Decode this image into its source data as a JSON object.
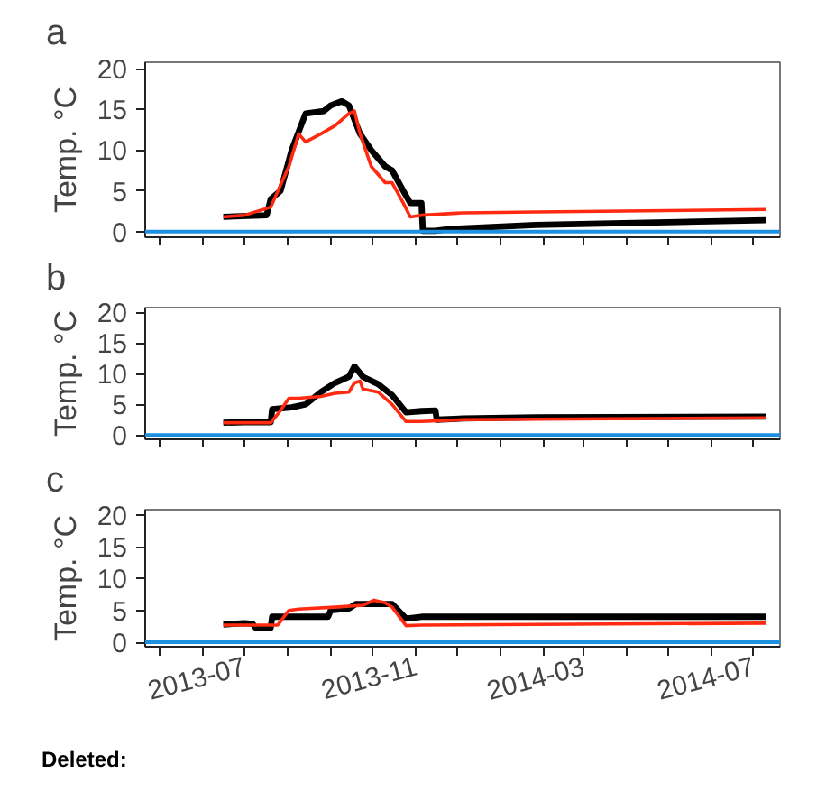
{
  "chart_data": [
    {
      "type": "line",
      "title": "a",
      "ylabel": "Temp. °C",
      "xlim": [
        "2013-04-21",
        "2014-07-20"
      ],
      "ylim": [
        -0.7,
        20.8
      ],
      "yticks": [
        0,
        5,
        10,
        15,
        20
      ],
      "xticks": [
        {
          "value": "2013-05-01",
          "label": null
        },
        {
          "value": "2013-06-01",
          "label": null
        },
        {
          "value": "2013-07-01",
          "label": null
        },
        {
          "value": "2013-08-01",
          "label": null
        },
        {
          "value": "2013-09-01",
          "label": null
        },
        {
          "value": "2013-10-01",
          "label": null
        },
        {
          "value": "2013-11-01",
          "label": null
        },
        {
          "value": "2013-12-01",
          "label": null
        },
        {
          "value": "2014-01-01",
          "label": null
        },
        {
          "value": "2014-02-01",
          "label": null
        },
        {
          "value": "2014-03-01",
          "label": null
        },
        {
          "value": "2014-04-01",
          "label": null
        },
        {
          "value": "2014-05-01",
          "label": null
        },
        {
          "value": "2014-06-01",
          "label": null
        },
        {
          "value": "2014-07-01",
          "label": null
        }
      ],
      "tick_labels": "y",
      "grid": false,
      "ref_lines": [
        {
          "axis": "y",
          "value": 0,
          "color": "#1e90e0"
        }
      ],
      "series": [
        {
          "color": "#000000",
          "x": [
            "2013-06-16",
            "2013-07-17",
            "2013-07-20",
            "2013-07-27",
            "2013-08-04",
            "2013-08-14",
            "2013-08-27",
            "2013-09-01",
            "2013-09-09",
            "2013-09-14",
            "2013-09-22",
            "2013-09-30",
            "2013-10-10",
            "2013-10-15",
            "2013-10-23",
            "2013-10-28",
            "2013-11-05",
            "2013-11-06",
            "2013-11-15",
            "2013-11-25",
            "2013-12-05",
            "2014-01-26",
            "2014-07-10"
          ],
          "values": [
            1.8,
            2,
            4,
            5,
            10,
            14.5,
            14.8,
            15.5,
            16,
            15.5,
            12,
            10,
            8,
            7.5,
            5,
            3.5,
            3.5,
            0.1,
            0.1,
            0.3,
            0.4,
            0.8,
            1.4
          ]
        },
        {
          "color": "#ff2a10",
          "x": [
            "2013-06-16",
            "2013-07-01",
            "2013-07-20",
            "2013-08-02",
            "2013-08-09",
            "2013-08-14",
            "2013-08-25",
            "2013-09-04",
            "2013-09-14",
            "2013-09-18",
            "2013-09-22",
            "2013-09-30",
            "2013-10-10",
            "2013-10-15",
            "2013-10-23",
            "2013-10-28",
            "2013-11-05",
            "2013-12-05",
            "2014-01-26",
            "2014-07-10"
          ],
          "values": [
            1.8,
            2,
            3,
            8,
            12,
            11,
            12,
            13,
            14.5,
            14.8,
            12,
            8,
            6,
            6,
            3.5,
            1.8,
            2,
            2.3,
            2.4,
            2.7
          ]
        }
      ]
    },
    {
      "type": "line",
      "title": "b",
      "ylabel": "Temp. °C",
      "xlim": [
        "2013-04-21",
        "2014-07-20"
      ],
      "ylim": [
        -0.7,
        20.8
      ],
      "yticks": [
        0,
        5,
        10,
        15,
        20
      ],
      "xticks": [
        {
          "value": "2013-05-01",
          "label": null
        },
        {
          "value": "2013-06-01",
          "label": null
        },
        {
          "value": "2013-07-01",
          "label": null
        },
        {
          "value": "2013-08-01",
          "label": null
        },
        {
          "value": "2013-09-01",
          "label": null
        },
        {
          "value": "2013-10-01",
          "label": null
        },
        {
          "value": "2013-11-01",
          "label": null
        },
        {
          "value": "2013-12-01",
          "label": null
        },
        {
          "value": "2014-01-01",
          "label": null
        },
        {
          "value": "2014-02-01",
          "label": null
        },
        {
          "value": "2014-03-01",
          "label": null
        },
        {
          "value": "2014-04-01",
          "label": null
        },
        {
          "value": "2014-05-01",
          "label": null
        },
        {
          "value": "2014-06-01",
          "label": null
        },
        {
          "value": "2014-07-01",
          "label": null
        }
      ],
      "tick_labels": "y",
      "grid": false,
      "ref_lines": [
        {
          "axis": "y",
          "value": 0,
          "color": "#1e90e0"
        }
      ],
      "series": [
        {
          "color": "#000000",
          "x": [
            "2013-06-16",
            "2013-07-01",
            "2013-07-20",
            "2013-07-21",
            "2013-08-04",
            "2013-08-14",
            "2013-08-25",
            "2013-09-04",
            "2013-09-14",
            "2013-09-18",
            "2013-09-24",
            "2013-10-05",
            "2013-10-15",
            "2013-10-25",
            "2013-11-05",
            "2013-11-15",
            "2013-11-16",
            "2013-12-05",
            "2014-01-26",
            "2014-07-10"
          ],
          "values": [
            2,
            2.1,
            2.1,
            4.2,
            4.5,
            5,
            7,
            8.5,
            9.5,
            11.2,
            9.5,
            8.3,
            6.5,
            3.7,
            3.9,
            4,
            2.5,
            2.7,
            2.9,
            3
          ]
        },
        {
          "color": "#ff2a10",
          "x": [
            "2013-06-16",
            "2013-07-20",
            "2013-07-27",
            "2013-08-02",
            "2013-08-09",
            "2013-08-25",
            "2013-09-04",
            "2013-09-14",
            "2013-09-18",
            "2013-09-22",
            "2013-09-24",
            "2013-10-05",
            "2013-10-15",
            "2013-10-25",
            "2013-11-05",
            "2013-12-05",
            "2014-07-10"
          ],
          "values": [
            2,
            2,
            4,
            6,
            6,
            6.3,
            6.8,
            7,
            8.5,
            8.8,
            7.5,
            7,
            5,
            2.2,
            2.2,
            2.5,
            2.8
          ]
        }
      ]
    },
    {
      "type": "line",
      "title": "c",
      "ylabel": "Temp. °C",
      "xlim": [
        "2013-04-21",
        "2014-07-20"
      ],
      "ylim": [
        -0.7,
        20.8
      ],
      "yticks": [
        0,
        5,
        10,
        15,
        20
      ],
      "xticks": [
        {
          "value": "2013-05-01",
          "label": null
        },
        {
          "value": "2013-06-01",
          "label": null
        },
        {
          "value": "2013-07-01",
          "label": "2013-07"
        },
        {
          "value": "2013-08-01",
          "label": null
        },
        {
          "value": "2013-09-01",
          "label": null
        },
        {
          "value": "2013-10-01",
          "label": null
        },
        {
          "value": "2013-11-01",
          "label": "2013-11"
        },
        {
          "value": "2013-12-01",
          "label": null
        },
        {
          "value": "2014-01-01",
          "label": null
        },
        {
          "value": "2014-02-01",
          "label": null
        },
        {
          "value": "2014-03-01",
          "label": "2014-03"
        },
        {
          "value": "2014-04-01",
          "label": null
        },
        {
          "value": "2014-05-01",
          "label": null
        },
        {
          "value": "2014-06-01",
          "label": null
        },
        {
          "value": "2014-07-01",
          "label": "2014-07"
        }
      ],
      "grid": false,
      "ref_lines": [
        {
          "axis": "y",
          "value": 0,
          "color": "#1e90e0"
        }
      ],
      "annotations": [
        "Deleted:"
      ],
      "series": [
        {
          "color": "#000000",
          "x": [
            "2013-06-16",
            "2013-07-01",
            "2013-07-07",
            "2013-07-09",
            "2013-07-20",
            "2013-07-21",
            "2013-08-30",
            "2013-09-01",
            "2013-09-14",
            "2013-09-19",
            "2013-10-15",
            "2013-10-25",
            "2013-11-05",
            "2014-07-10"
          ],
          "values": [
            2.8,
            3,
            2.9,
            2.3,
            2.3,
            4,
            4,
            5,
            5.3,
            6,
            6,
            3.7,
            4,
            4
          ]
        },
        {
          "color": "#ff2a10",
          "x": [
            "2013-06-16",
            "2013-07-25",
            "2013-08-02",
            "2013-08-09",
            "2013-09-04",
            "2013-09-24",
            "2013-10-02",
            "2013-10-10",
            "2013-10-15",
            "2013-10-25",
            "2013-11-05",
            "2014-07-10"
          ],
          "values": [
            2.7,
            2.7,
            5,
            5.2,
            5.5,
            5.8,
            6.6,
            6.2,
            5.5,
            2.6,
            2.7,
            3
          ]
        }
      ]
    }
  ]
}
